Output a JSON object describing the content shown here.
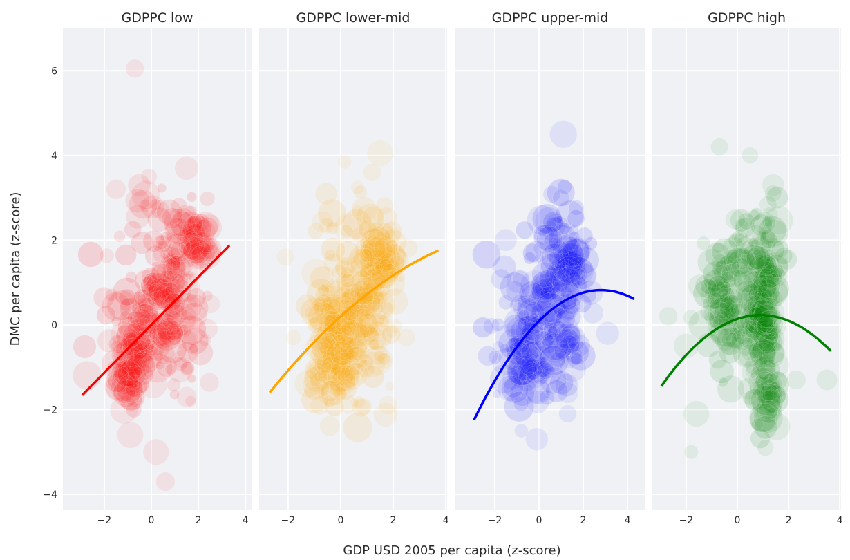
{
  "chart_data": {
    "type": "scatter",
    "title": "",
    "xlabel": "GDP USD 2005 per capita (z-score)",
    "ylabel": "DMC per capita (z-score)",
    "ylim": [
      -4.36,
      7.0
    ],
    "yticks": [
      -4,
      -2,
      0,
      2,
      4,
      6
    ],
    "xticks": [
      -2,
      0,
      2,
      4
    ],
    "grid": true,
    "legend": "none",
    "marker": "bubble (size-encoded, semi-transparent)",
    "panels": [
      {
        "title": "GDPPC low",
        "color": "#ff0000",
        "xlim": [
          -3.76,
          4.26
        ],
        "trendline": {
          "type": "linear",
          "x_range": [
            -2.94,
            3.32
          ],
          "coef": [
            0.0,
            0.565,
            0.0
          ]
        },
        "clusters": [
          {
            "cx": -0.9,
            "cy": -1.0,
            "sx": 0.35,
            "sy": 0.55,
            "n": 70
          },
          {
            "cx": -0.2,
            "cy": 0.0,
            "sx": 0.6,
            "sy": 0.7,
            "n": 90
          },
          {
            "cx": 1.0,
            "cy": 1.1,
            "sx": 0.55,
            "sy": 0.55,
            "n": 70
          },
          {
            "cx": 1.9,
            "cy": 2.0,
            "sx": 0.35,
            "sy": 0.35,
            "n": 55
          },
          {
            "cx": 1.2,
            "cy": -0.4,
            "sx": 0.6,
            "sy": 0.6,
            "n": 45
          },
          {
            "cx": 0.3,
            "cy": 2.6,
            "sx": 0.8,
            "sy": 0.5,
            "n": 25
          },
          {
            "cx": -1.9,
            "cy": 0.6,
            "sx": 0.5,
            "sy": 1.0,
            "n": 14
          }
        ],
        "outliers": [
          [
            -0.7,
            6.05
          ],
          [
            -0.1,
            3.5
          ],
          [
            1.5,
            3.7
          ],
          [
            -1.5,
            3.2
          ],
          [
            0.2,
            -3.0
          ],
          [
            -0.9,
            -2.6
          ],
          [
            0.6,
            -3.7
          ],
          [
            2.4,
            -0.1
          ],
          [
            1.5,
            -1.7
          ]
        ]
      },
      {
        "title": "GDPPC lower-mid",
        "color": "#ffa500",
        "xlim": [
          -3.1,
          4.05
        ],
        "trendline": {
          "type": "quadratic",
          "x_range": [
            -2.7,
            3.72
          ],
          "coef": [
            0.2,
            0.562,
            -0.0387
          ]
        },
        "clusters": [
          {
            "cx": -0.4,
            "cy": -0.6,
            "sx": 0.45,
            "sy": 0.6,
            "n": 80
          },
          {
            "cx": 0.1,
            "cy": 0.2,
            "sx": 0.5,
            "sy": 0.55,
            "n": 80
          },
          {
            "cx": 1.1,
            "cy": 1.0,
            "sx": 0.45,
            "sy": 0.5,
            "n": 55
          },
          {
            "cx": 1.6,
            "cy": 1.7,
            "sx": 0.4,
            "sy": 0.4,
            "n": 45
          },
          {
            "cx": 1.0,
            "cy": -0.6,
            "sx": 0.7,
            "sy": 0.6,
            "n": 45
          },
          {
            "cx": 0.6,
            "cy": 2.3,
            "sx": 0.7,
            "sy": 0.5,
            "n": 25
          },
          {
            "cx": 0.3,
            "cy": -1.6,
            "sx": 0.8,
            "sy": 0.35,
            "n": 20
          }
        ],
        "outliers": [
          [
            1.5,
            4.05
          ],
          [
            1.2,
            3.6
          ],
          [
            -2.1,
            1.6
          ],
          [
            2.5,
            -0.3
          ],
          [
            -1.8,
            -0.3
          ],
          [
            1.8,
            -1.9
          ],
          [
            -0.8,
            -1.9
          ]
        ]
      },
      {
        "title": "GDPPC upper-mid",
        "color": "#0000ff",
        "xlim": [
          -3.78,
          4.78
        ],
        "trendline": {
          "type": "quadratic",
          "x_range": [
            -2.94,
            4.3
          ],
          "coef": [
            0.091,
            0.521,
            -0.093
          ]
        },
        "clusters": [
          {
            "cx": -0.6,
            "cy": -0.8,
            "sx": 0.35,
            "sy": 0.5,
            "n": 60
          },
          {
            "cx": 0.2,
            "cy": 0.2,
            "sx": 0.55,
            "sy": 0.7,
            "n": 80
          },
          {
            "cx": 1.3,
            "cy": 1.4,
            "sx": 0.45,
            "sy": 0.5,
            "n": 75
          },
          {
            "cx": 1.1,
            "cy": -0.5,
            "sx": 0.5,
            "sy": 0.6,
            "n": 45
          },
          {
            "cx": 0.8,
            "cy": 2.2,
            "sx": 0.6,
            "sy": 0.4,
            "n": 25
          },
          {
            "cx": -1.8,
            "cy": 0.1,
            "sx": 0.5,
            "sy": 0.8,
            "n": 12
          }
        ],
        "outliers": [
          [
            1.1,
            4.5
          ],
          [
            1.0,
            3.0
          ],
          [
            -1.5,
            2.0
          ],
          [
            1.3,
            -2.1
          ],
          [
            1.3,
            -1.6
          ],
          [
            -1.3,
            -1.5
          ],
          [
            3.1,
            -0.2
          ],
          [
            -0.1,
            -2.7
          ],
          [
            -0.8,
            -2.5
          ]
        ]
      },
      {
        "title": "GDPPC high",
        "color": "#008000",
        "xlim": [
          -3.32,
          4.05
        ],
        "trendline": {
          "type": "quadratic",
          "x_range": [
            -2.97,
            3.65
          ],
          "coef": [
            0.139,
            0.202,
            -0.112
          ]
        },
        "clusters": [
          {
            "cx": -0.5,
            "cy": 0.4,
            "sx": 0.45,
            "sy": 0.8,
            "n": 80
          },
          {
            "cx": 0.3,
            "cy": 0.3,
            "sx": 0.5,
            "sy": 0.9,
            "n": 70
          },
          {
            "cx": 1.1,
            "cy": 1.0,
            "sx": 0.25,
            "sy": 0.8,
            "n": 70
          },
          {
            "cx": 1.1,
            "cy": -0.4,
            "sx": 0.25,
            "sy": 0.6,
            "n": 60
          },
          {
            "cx": 1.2,
            "cy": -1.8,
            "sx": 0.25,
            "sy": 0.4,
            "n": 30
          },
          {
            "cx": 0.4,
            "cy": 1.8,
            "sx": 0.6,
            "sy": 0.5,
            "n": 25
          }
        ],
        "outliers": [
          [
            -0.7,
            4.2
          ],
          [
            0.5,
            4.0
          ],
          [
            1.4,
            3.3
          ],
          [
            1.4,
            3.1
          ],
          [
            -2.7,
            0.2
          ],
          [
            -2.0,
            -0.5
          ],
          [
            2.3,
            -1.3
          ],
          [
            3.5,
            -1.3
          ],
          [
            -1.6,
            -2.1
          ],
          [
            1.1,
            -2.9
          ],
          [
            -1.8,
            -3.0
          ]
        ]
      }
    ]
  }
}
